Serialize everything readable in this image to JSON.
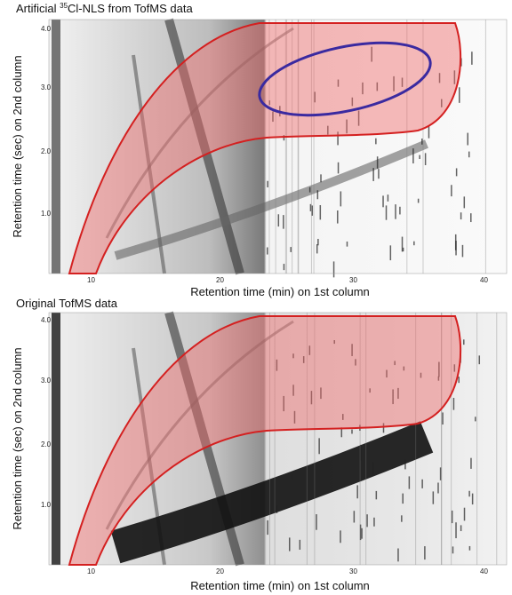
{
  "panels": [
    {
      "title": {
        "prefix": "Artificial ",
        "superscript": "35",
        "suffix": "Cl-NLS from TofMS data"
      },
      "y_label": "Retention time (sec) on 2nd column",
      "x_label": "Retention time (min) on 1st column",
      "y_ticks": [
        "4.0",
        "3.0",
        "2.0",
        "1.0"
      ],
      "x_ticks": [
        "10",
        "20",
        "30",
        "40"
      ]
    },
    {
      "title": "Original TofMS data",
      "y_label": "Retention time (sec) on 2nd column",
      "x_label": "Retention time (min) on 1st column",
      "y_ticks": [
        "4.0",
        "3.0",
        "2.0",
        "1.0"
      ],
      "x_ticks": [
        "10",
        "20",
        "30",
        "40"
      ]
    }
  ]
}
